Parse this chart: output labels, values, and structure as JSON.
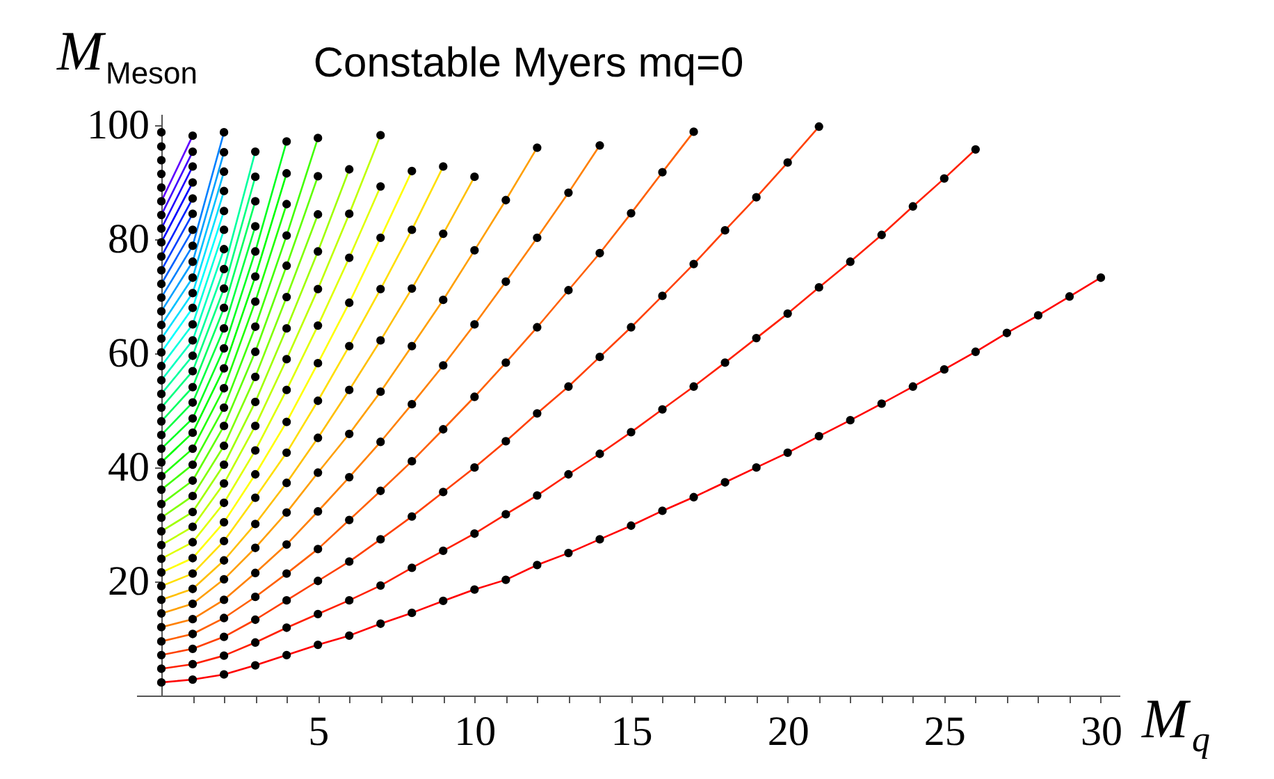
{
  "chart_data": {
    "type": "line",
    "title": "Constable Myers mq=0",
    "xlabel": "M$_{q}$",
    "ylabel": "M$_{Meson}$",
    "xlim": [
      -0.8,
      30.6
    ],
    "ylim": [
      0,
      102
    ],
    "xticks": [
      {
        "value": 1,
        "label": null
      },
      {
        "value": 2,
        "label": null
      },
      {
        "value": 3,
        "label": null
      },
      {
        "value": 4,
        "label": null
      },
      5,
      {
        "value": 6,
        "label": null
      },
      {
        "value": 7,
        "label": null
      },
      {
        "value": 8,
        "label": null
      },
      {
        "value": 9,
        "label": null
      },
      10,
      {
        "value": 11,
        "label": null
      },
      {
        "value": 12,
        "label": null
      },
      {
        "value": 13,
        "label": null
      },
      {
        "value": 14,
        "label": null
      },
      15,
      {
        "value": 16,
        "label": null
      },
      {
        "value": 17,
        "label": null
      },
      {
        "value": 18,
        "label": null
      },
      {
        "value": 19,
        "label": null
      },
      20,
      {
        "value": 21,
        "label": null
      },
      {
        "value": 22,
        "label": null
      },
      {
        "value": 23,
        "label": null
      },
      {
        "value": 24,
        "label": null
      },
      25,
      {
        "value": 26,
        "label": null
      },
      {
        "value": 27,
        "label": null
      },
      {
        "value": 28,
        "label": null
      },
      {
        "value": 29,
        "label": null
      },
      30
    ],
    "yticks": [
      20,
      40,
      60,
      80,
      100
    ],
    "grid": false,
    "legend": false,
    "marker": "circle",
    "series": [
      {
        "color": "#ff0000",
        "x": [
          0,
          1,
          2,
          3,
          4,
          5,
          6,
          7,
          8,
          9,
          10,
          11,
          12,
          13,
          14,
          15,
          16,
          17,
          18,
          19,
          20,
          21,
          22,
          23,
          24,
          25,
          26,
          27,
          28,
          29,
          30
        ],
        "values": [
          2.3,
          2.8,
          3.7,
          5.3,
          7.1,
          8.9,
          10.5,
          12.6,
          14.5,
          16.6,
          18.6,
          20.3,
          22.9,
          25.0,
          27.4,
          29.8,
          32.4,
          34.8,
          37.4,
          40.0,
          42.6,
          45.5,
          48.3,
          51.2,
          54.2,
          57.2,
          60.3,
          63.6,
          66.7,
          70.0,
          73.3
        ]
      },
      {
        "color": "#ff2000",
        "x": [
          0,
          1,
          2,
          3,
          4,
          5,
          6,
          7,
          8,
          9,
          10,
          11,
          12,
          13,
          14,
          15,
          16,
          17,
          18,
          19,
          20,
          21,
          22,
          23,
          24,
          25,
          26
        ],
        "values": [
          4.7,
          5.5,
          7.0,
          9.3,
          11.9,
          14.3,
          16.7,
          19.3,
          22.4,
          25.4,
          28.4,
          31.8,
          35.1,
          38.8,
          42.4,
          46.2,
          50.2,
          54.2,
          58.4,
          62.7,
          67.0,
          71.6,
          76.1,
          80.8,
          85.8,
          90.7,
          95.8
        ]
      },
      {
        "color": "#ff4000",
        "x": [
          0,
          1,
          2,
          3,
          4,
          5,
          6,
          7,
          8,
          9,
          10,
          11,
          12,
          13,
          14,
          15,
          16,
          17,
          18,
          19,
          20,
          21
        ],
        "values": [
          7.1,
          8.2,
          10.3,
          13.3,
          16.7,
          20.1,
          23.5,
          27.4,
          31.4,
          35.7,
          40.0,
          44.6,
          49.5,
          54.2,
          59.4,
          64.6,
          70.1,
          75.7,
          81.6,
          87.4,
          93.5,
          99.8
        ]
      },
      {
        "color": "#ff6000",
        "x": [
          0,
          1,
          2,
          3,
          4,
          5,
          6,
          7,
          8,
          9,
          10,
          11,
          12,
          13,
          14,
          15,
          16,
          17
        ],
        "values": [
          9.5,
          10.8,
          13.6,
          17.3,
          21.4,
          25.7,
          30.8,
          35.9,
          41.1,
          46.7,
          52.4,
          58.4,
          64.6,
          71.1,
          77.6,
          84.6,
          91.8,
          98.9
        ]
      },
      {
        "color": "#ff8000",
        "x": [
          0,
          1,
          2,
          3,
          4,
          5,
          6,
          7,
          8,
          9,
          10,
          11,
          12,
          13,
          14
        ],
        "values": [
          12.0,
          13.4,
          16.8,
          21.5,
          26.5,
          32.3,
          38.3,
          44.5,
          51.1,
          57.9,
          65.1,
          72.6,
          80.3,
          88.2,
          96.5
        ]
      },
      {
        "color": "#ff9f00",
        "x": [
          0,
          1,
          2,
          3,
          4,
          5,
          6,
          7,
          8,
          9,
          10,
          11,
          12
        ],
        "values": [
          14.4,
          16.1,
          20.4,
          25.9,
          32.1,
          39.1,
          45.9,
          53.3,
          61.3,
          69.4,
          78.1,
          86.9,
          96.1
        ]
      },
      {
        "color": "#ffbf00",
        "x": [
          0,
          1,
          2,
          3,
          4,
          5,
          6,
          7,
          8,
          9,
          10
        ],
        "values": [
          16.8,
          18.7,
          23.7,
          30.1,
          37.3,
          45.2,
          53.6,
          62.3,
          71.4,
          81.0,
          91.0
        ]
      },
      {
        "color": "#ffdf00",
        "x": [
          0,
          1,
          2,
          3,
          4,
          5,
          6,
          7,
          8,
          9
        ],
        "values": [
          19.2,
          21.4,
          27.1,
          34.7,
          42.6,
          51.7,
          61.3,
          71.3,
          81.7,
          92.8
        ]
      },
      {
        "color": "#ffff00",
        "x": [
          0,
          1,
          2,
          3,
          4,
          5,
          6,
          7,
          8
        ],
        "values": [
          21.6,
          24.1,
          30.4,
          38.8,
          48.0,
          58.3,
          68.9,
          80.3,
          92.0
        ]
      },
      {
        "color": "#dfff00",
        "x": [
          0,
          1,
          2,
          3,
          4,
          5,
          6,
          7
        ],
        "values": [
          24.0,
          26.9,
          33.8,
          43.0,
          53.6,
          64.9,
          76.8,
          89.3
        ]
      },
      {
        "color": "#bfff00",
        "x": [
          0,
          1,
          2,
          3,
          4,
          5,
          6,
          7
        ],
        "values": [
          26.4,
          29.6,
          37.2,
          47.3,
          59.0,
          71.3,
          84.5,
          98.3
        ]
      },
      {
        "color": "#9fff00",
        "x": [
          0,
          1,
          2,
          3,
          4,
          5,
          6
        ],
        "values": [
          28.8,
          32.2,
          40.5,
          51.5,
          64.4,
          77.9,
          92.3
        ]
      },
      {
        "color": "#80ff00",
        "x": [
          0,
          1,
          2,
          3,
          4,
          5
        ],
        "values": [
          31.2,
          35.0,
          43.8,
          55.9,
          69.9,
          84.4
        ]
      },
      {
        "color": "#60ff00",
        "x": [
          0,
          1,
          2,
          3,
          4,
          5
        ],
        "values": [
          33.6,
          37.7,
          47.3,
          60.3,
          75.4,
          91.1
        ]
      },
      {
        "color": "#40ff00",
        "x": [
          0,
          1,
          2,
          3,
          4,
          5
        ],
        "values": [
          36.1,
          40.5,
          50.5,
          64.7,
          80.7,
          97.8
        ]
      },
      {
        "color": "#20ff00",
        "x": [
          0,
          1,
          2,
          3,
          4
        ],
        "values": [
          38.5,
          43.3,
          53.9,
          69.1,
          86.2
        ]
      },
      {
        "color": "#00ff00",
        "x": [
          0,
          1,
          2,
          3,
          4
        ],
        "values": [
          40.9,
          46.1,
          57.4,
          73.5,
          91.6
        ]
      },
      {
        "color": "#00ff20",
        "x": [
          0,
          1,
          2,
          3,
          4
        ],
        "values": [
          43.3,
          48.6,
          60.9,
          77.9,
          97.2
        ]
      },
      {
        "color": "#00ff40",
        "x": [
          0,
          1,
          2,
          3
        ],
        "values": [
          45.7,
          51.4,
          64.4,
          82.3
        ]
      },
      {
        "color": "#00ff60",
        "x": [
          0,
          1,
          2,
          3
        ],
        "values": [
          48.1,
          54.1,
          68.0,
          86.7
        ]
      },
      {
        "color": "#00ff80",
        "x": [
          0,
          1,
          2,
          3
        ],
        "values": [
          50.5,
          56.9,
          71.4,
          91.0
        ]
      },
      {
        "color": "#00ff9f",
        "x": [
          0,
          1,
          2,
          3
        ],
        "values": [
          52.9,
          59.6,
          74.8,
          95.4
        ]
      },
      {
        "color": "#00ffbf",
        "x": [
          0,
          1,
          2
        ],
        "values": [
          55.3,
          62.3,
          78.3
        ]
      },
      {
        "color": "#00ffdf",
        "x": [
          0,
          1,
          2
        ],
        "values": [
          57.8,
          65.1,
          81.7
        ]
      },
      {
        "color": "#00ffff",
        "x": [
          0,
          1,
          2
        ],
        "values": [
          60.2,
          68.0,
          85.0
        ]
      },
      {
        "color": "#00dfff",
        "x": [
          0,
          1,
          2
        ],
        "values": [
          62.6,
          70.6,
          88.5
        ]
      },
      {
        "color": "#00bfff",
        "x": [
          0,
          1,
          2
        ],
        "values": [
          65.0,
          73.3,
          91.9
        ]
      },
      {
        "color": "#009fff",
        "x": [
          0,
          1,
          2
        ],
        "values": [
          67.4,
          76.1,
          95.3
        ]
      },
      {
        "color": "#0080ff",
        "x": [
          0,
          1,
          2
        ],
        "values": [
          69.8,
          78.9,
          98.8
        ]
      },
      {
        "color": "#0060ff",
        "x": [
          0,
          1
        ],
        "values": [
          72.2,
          81.7
        ]
      },
      {
        "color": "#0040ff",
        "x": [
          0,
          1
        ],
        "values": [
          74.6,
          84.5
        ]
      },
      {
        "color": "#0020ff",
        "x": [
          0,
          1
        ],
        "values": [
          77.0,
          87.2
        ]
      },
      {
        "color": "#0000ff",
        "x": [
          0,
          1
        ],
        "values": [
          79.5,
          90.0
        ]
      },
      {
        "color": "#2000ff",
        "x": [
          0,
          1
        ],
        "values": [
          81.9,
          92.8
        ]
      },
      {
        "color": "#4000ff",
        "x": [
          0,
          1
        ],
        "values": [
          84.3,
          95.4
        ]
      },
      {
        "color": "#6000ff",
        "x": [
          0,
          1
        ],
        "values": [
          86.7,
          98.2
        ]
      },
      {
        "type": "scatter",
        "color": "#000000",
        "x": [
          0,
          0,
          0,
          0,
          0
        ],
        "values": [
          89.1,
          91.5,
          93.9,
          96.3,
          98.8
        ]
      }
    ]
  }
}
